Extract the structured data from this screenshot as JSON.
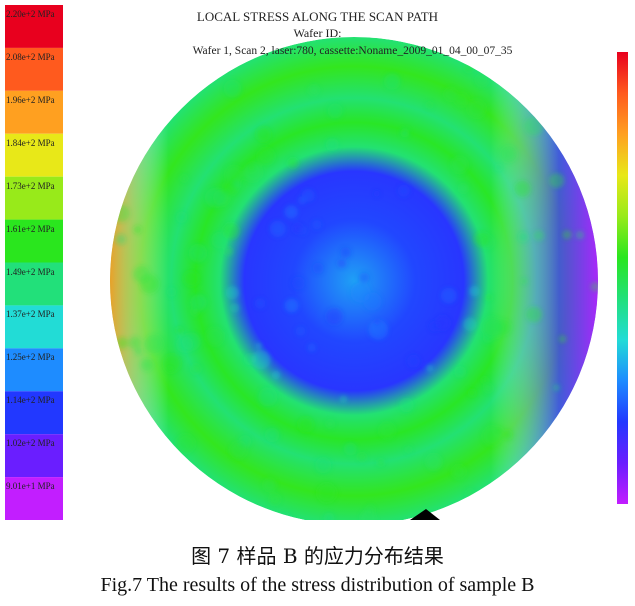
{
  "chart_data": {
    "type": "heatmap",
    "title": "LOCAL STRESS ALONG THE SCAN PATH",
    "subtitle_1": "Wafer ID:",
    "subtitle_2": "Wafer 1, Scan 2, laser:780, cassette:Noname_2009_01_04_00_07_35",
    "unit": "MPa",
    "colorbar_levels": [
      {
        "label": "2.20e+2 MPa",
        "value": 220,
        "color": "#e8001e"
      },
      {
        "label": "2.08e+2 MPa",
        "value": 208,
        "color": "#ff5a1e"
      },
      {
        "label": "1.96e+2 MPa",
        "value": 196,
        "color": "#ffa020"
      },
      {
        "label": "1.84e+2 MPa",
        "value": 184,
        "color": "#e8e818"
      },
      {
        "label": "1.73e+2 MPa",
        "value": 173,
        "color": "#98ea1a"
      },
      {
        "label": "1.61e+2 MPa",
        "value": 161,
        "color": "#2ae61e"
      },
      {
        "label": "1.49e+2 MPa",
        "value": 149,
        "color": "#22e07a"
      },
      {
        "label": "1.37e+2 MPa",
        "value": 137,
        "color": "#22dcd6"
      },
      {
        "label": "1.25e+2 MPa",
        "value": 125,
        "color": "#1e8cff"
      },
      {
        "label": "1.14e+2 MPa",
        "value": 114,
        "color": "#2238ff"
      },
      {
        "label": "1.02e+2 MPa",
        "value": 102,
        "color": "#6a1eff"
      },
      {
        "label": "9.01e+1 MPa",
        "value": 90.1,
        "color": "#c21eff"
      }
    ],
    "wafer_map": {
      "shape": "circular wafer",
      "radial_profile": [
        {
          "r_fraction": 0.0,
          "value": 128
        },
        {
          "r_fraction": 0.25,
          "value": 116
        },
        {
          "r_fraction": 0.45,
          "value": 113
        },
        {
          "r_fraction": 0.55,
          "value": 150
        },
        {
          "r_fraction": 0.65,
          "value": 160
        },
        {
          "r_fraction": 0.75,
          "value": 150
        },
        {
          "r_fraction": 0.88,
          "value": 162
        },
        {
          "r_fraction": 1.0,
          "value": 150
        }
      ],
      "edge_notes": "left edge higher (orange ~196), right edge lower (purple ~100)"
    }
  },
  "caption_cn": "图 7  样品 B 的应力分布结果",
  "caption_en": "Fig.7 The results of the stress distribution of sample B",
  "colors": {
    "background": "#ffffff",
    "text": "#222222"
  }
}
